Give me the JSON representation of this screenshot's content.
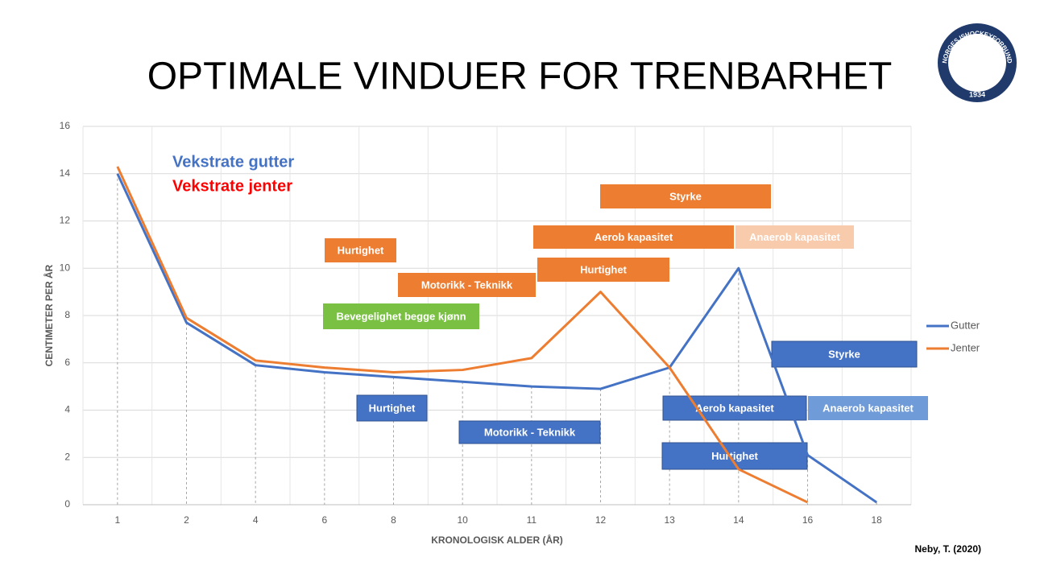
{
  "chart_data": {
    "type": "line",
    "title": "OPTIMALE VINDUER FOR TRENBARHET",
    "x_label": "KRONOLOGISK ALDER (ÅR)",
    "y_label": "CENTIMETER PER ÅR",
    "categories": [
      "1",
      "2",
      "4",
      "6",
      "8",
      "10",
      "11",
      "12",
      "13",
      "14",
      "16",
      "18"
    ],
    "series": [
      {
        "name": "Gutter",
        "color": "#4472c4",
        "values": [
          14,
          7.7,
          5.9,
          5.6,
          5.4,
          5.2,
          5.0,
          4.9,
          5.8,
          10,
          2.1,
          0.1
        ]
      },
      {
        "name": "Jenter",
        "color": "#ed7d31",
        "values": [
          14.3,
          7.9,
          6.1,
          5.8,
          5.6,
          5.7,
          6.2,
          9,
          5.8,
          1.5,
          0.1,
          null
        ]
      }
    ],
    "ylim": [
      0,
      16
    ],
    "yticks": [
      0,
      2,
      4,
      6,
      8,
      10,
      12,
      14,
      16
    ],
    "grid": true,
    "legend": "right",
    "annotations": [
      {
        "text": "Vekstrate gutter",
        "color": "#4472c4"
      },
      {
        "text": "Vekstrate jenter",
        "color": "#ff0000"
      }
    ],
    "boxes": [
      {
        "text": "Styrke",
        "color": "#ed7d31"
      },
      {
        "text": "Aerob kapasitet",
        "color": "#ed7d31"
      },
      {
        "text": "Anaerob kapasitet",
        "color": "#f8cbad"
      },
      {
        "text": "Hurtighet",
        "color": "#ed7d31"
      },
      {
        "text": "Hurtighet",
        "color": "#ed7d31"
      },
      {
        "text": "Motorikk - Teknikk",
        "color": "#ed7d31"
      },
      {
        "text": "Bevegelighet begge kjønn",
        "color": "#7ac143"
      },
      {
        "text": "Styrke",
        "color": "#4472c4"
      },
      {
        "text": "Hurtighet",
        "color": "#4472c4"
      },
      {
        "text": "Motorikk - Teknikk",
        "color": "#4472c4"
      },
      {
        "text": "Aerob kapasitet",
        "color": "#4472c4"
      },
      {
        "text": "Anaerob kapasitet",
        "color": "#6f9bd8"
      },
      {
        "text": "Hurtighet",
        "color": "#4472c4"
      }
    ]
  },
  "source": "Neby, T. (2020)",
  "logo": {
    "name": "NORGES ISHOCKEYFORBUND",
    "year": "1934"
  }
}
